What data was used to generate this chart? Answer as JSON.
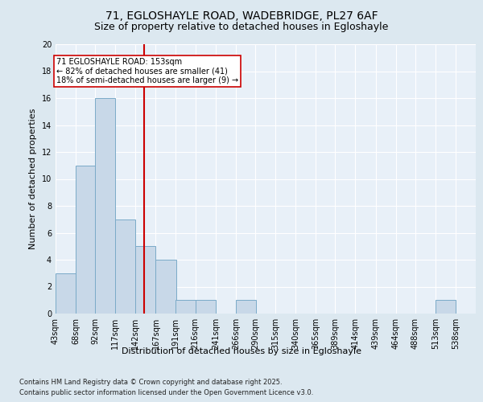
{
  "title_line1": "71, EGLOSHAYLE ROAD, WADEBRIDGE, PL27 6AF",
  "title_line2": "Size of property relative to detached houses in Egloshayle",
  "xlabel": "Distribution of detached houses by size in Egloshayle",
  "ylabel": "Number of detached properties",
  "bin_labels": [
    "43sqm",
    "68sqm",
    "92sqm",
    "117sqm",
    "142sqm",
    "167sqm",
    "191sqm",
    "216sqm",
    "241sqm",
    "266sqm",
    "290sqm",
    "315sqm",
    "340sqm",
    "365sqm",
    "389sqm",
    "414sqm",
    "439sqm",
    "464sqm",
    "488sqm",
    "513sqm",
    "538sqm"
  ],
  "bin_edges": [
    43,
    68,
    92,
    117,
    142,
    167,
    191,
    216,
    241,
    266,
    290,
    315,
    340,
    365,
    389,
    414,
    439,
    464,
    488,
    513,
    538,
    563
  ],
  "counts": [
    3,
    11,
    16,
    7,
    5,
    4,
    1,
    1,
    0,
    1,
    0,
    0,
    0,
    0,
    0,
    0,
    0,
    0,
    0,
    1,
    0
  ],
  "bar_color": "#c8d8e8",
  "bar_edge_color": "#7aaac8",
  "vline_x": 153,
  "vline_color": "#cc0000",
  "annotation_text": "71 EGLOSHAYLE ROAD: 153sqm\n← 82% of detached houses are smaller (41)\n18% of semi-detached houses are larger (9) →",
  "annotation_box_color": "#ffffff",
  "annotation_box_edge": "#cc0000",
  "ylim": [
    0,
    20
  ],
  "yticks": [
    0,
    2,
    4,
    6,
    8,
    10,
    12,
    14,
    16,
    18,
    20
  ],
  "footer_line1": "Contains HM Land Registry data © Crown copyright and database right 2025.",
  "footer_line2": "Contains public sector information licensed under the Open Government Licence v3.0.",
  "bg_color": "#dce8f0",
  "plot_bg_color": "#e8f0f8",
  "title1_fontsize": 10,
  "title2_fontsize": 9,
  "ylabel_fontsize": 8,
  "xlabel_fontsize": 8,
  "tick_fontsize": 7,
  "footer_fontsize": 6
}
